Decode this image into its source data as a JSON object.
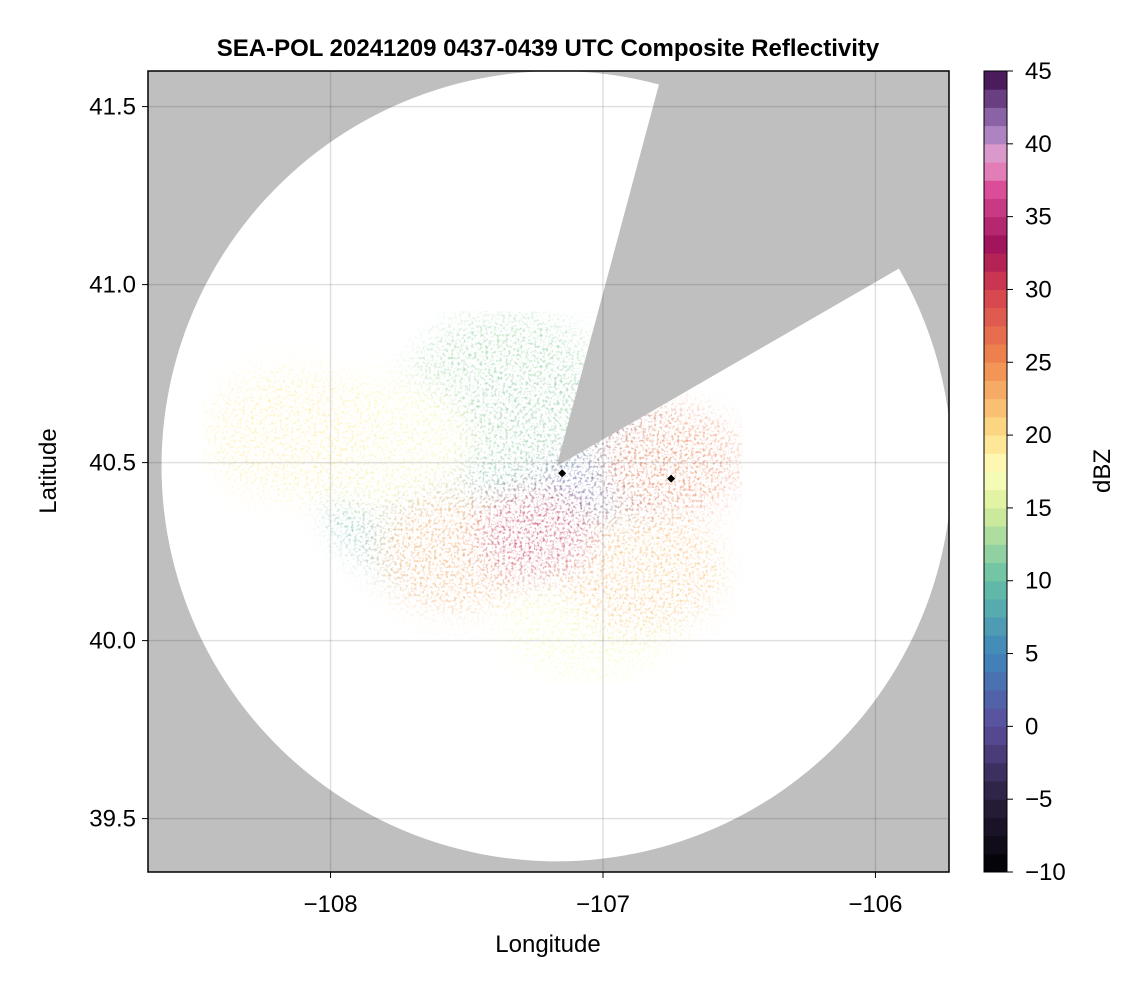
{
  "chart_data": {
    "type": "heatmap",
    "title": "SEA-POL 20241209 0437-0439 UTC Composite Reflectivity",
    "xlabel": "Longitude",
    "ylabel": "Latitude",
    "xlim": [
      -108.67,
      -105.73
    ],
    "ylim": [
      39.35,
      41.6
    ],
    "x_ticks": [
      {
        "value": -108,
        "label": "−108"
      },
      {
        "value": -107,
        "label": "−107"
      },
      {
        "value": -106,
        "label": "−106"
      }
    ],
    "y_ticks": [
      {
        "value": 39.5,
        "label": "39.5"
      },
      {
        "value": 40.0,
        "label": "40.0"
      },
      {
        "value": 40.5,
        "label": "40.5"
      },
      {
        "value": 41.0,
        "label": "41.0"
      },
      {
        "value": 41.5,
        "label": "41.5"
      }
    ],
    "grid": true,
    "colorbar": {
      "label": "dBZ",
      "range": [
        -10,
        45
      ],
      "tick_values": [
        -10,
        -5,
        0,
        5,
        10,
        15,
        20,
        25,
        30,
        35,
        40,
        45
      ],
      "tick_labels": [
        "−10",
        "−5",
        "0",
        "5",
        "10",
        "15",
        "20",
        "25",
        "30",
        "35",
        "40",
        "45"
      ],
      "colormap_stops": [
        {
          "value": -10,
          "color": "#000004"
        },
        {
          "value": -5,
          "color": "#2a1f3c"
        },
        {
          "value": 0,
          "color": "#5b4d9c"
        },
        {
          "value": 5,
          "color": "#3f86bc"
        },
        {
          "value": 10,
          "color": "#66bfa5"
        },
        {
          "value": 15,
          "color": "#d8ef9b"
        },
        {
          "value": 17.5,
          "color": "#feffbf"
        },
        {
          "value": 20,
          "color": "#fee08b"
        },
        {
          "value": 25,
          "color": "#f08a4e"
        },
        {
          "value": 30,
          "color": "#d53e4f"
        },
        {
          "value": 33,
          "color": "#a0135a"
        },
        {
          "value": 37,
          "color": "#de4f9b"
        },
        {
          "value": 39,
          "color": "#e7a0cc"
        },
        {
          "value": 41,
          "color": "#a07cc0"
        },
        {
          "value": 45,
          "color": "#3b0a4a"
        }
      ]
    },
    "radar": {
      "center_lon": -107.17,
      "center_lat": 40.49,
      "range_deg_lat": 1.11,
      "blocked_sector_deg_from_north": [
        15,
        60
      ],
      "coverage_color": "#ffffff",
      "no_data_color": "#bfbfbf"
    },
    "echo_regions": [
      {
        "lon": -107.25,
        "lat": 40.3,
        "dbz": 31
      },
      {
        "lon": -106.75,
        "lat": 40.5,
        "dbz": 26
      },
      {
        "lon": -107.55,
        "lat": 40.25,
        "dbz": 23
      },
      {
        "lon": -106.85,
        "lat": 40.2,
        "dbz": 22
      },
      {
        "lon": -107.35,
        "lat": 40.7,
        "dbz": 12
      },
      {
        "lon": -107.62,
        "lat": 40.4,
        "dbz": 9
      },
      {
        "lon": -107.2,
        "lat": 40.48,
        "dbz": 2
      },
      {
        "lon": -107.8,
        "lat": 40.55,
        "dbz": 18
      },
      {
        "lon": -108.15,
        "lat": 40.58,
        "dbz": 19
      },
      {
        "lon": -107.05,
        "lat": 40.08,
        "dbz": 17
      }
    ],
    "markers": [
      {
        "lon": -107.15,
        "lat": 40.47,
        "color": "#000000"
      },
      {
        "lon": -106.75,
        "lat": 40.455,
        "color": "#000000"
      }
    ]
  }
}
